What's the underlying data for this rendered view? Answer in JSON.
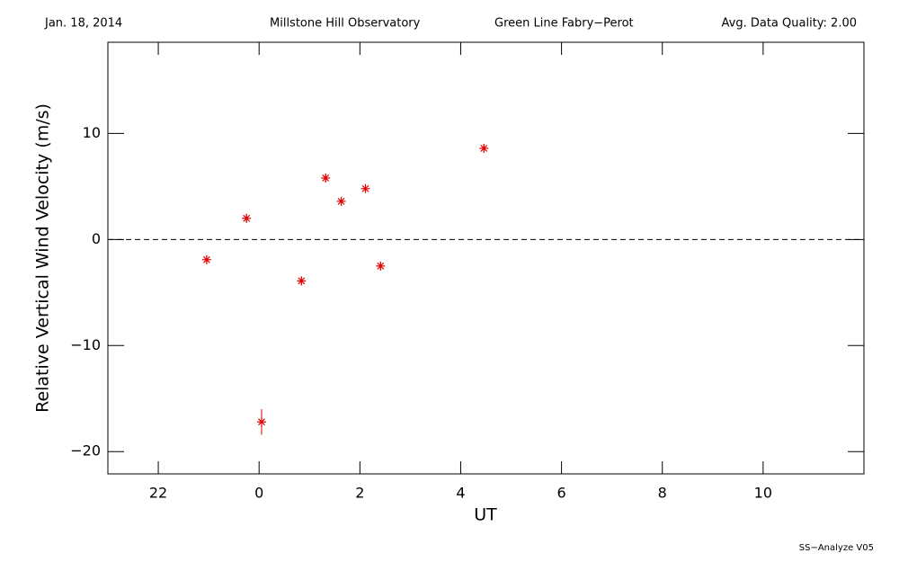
{
  "chart_data": {
    "type": "scatter",
    "header": [
      "Jan. 18, 2014",
      "Millstone Hill Observatory",
      "Green Line Fabry−Perot",
      "Avg. Data Quality: 2.00"
    ],
    "footer": "SS−Analyze V05",
    "x_label": "UT",
    "y_label": "Relative Vertical Wind Velocity (m/s)",
    "x": [
      22.96,
      23.75,
      24.05,
      24.84,
      25.32,
      25.63,
      26.11,
      26.41,
      28.46
    ],
    "values": [
      -1.9,
      2.0,
      -17.2,
      -3.9,
      5.8,
      3.6,
      4.8,
      -2.5,
      8.6
    ],
    "errors": [
      0.4,
      0.4,
      1.2,
      0.4,
      0.4,
      0.4,
      0.4,
      0.4,
      0.4
    ],
    "color": "#e00000",
    "xlim": [
      21,
      36
    ],
    "xticks": [
      22,
      {
        "value": 24,
        "label": "0"
      },
      {
        "value": 26,
        "label": "2"
      },
      {
        "value": 28,
        "label": "4"
      },
      {
        "value": 30,
        "label": "6"
      },
      {
        "value": 32,
        "label": "8"
      },
      {
        "value": 34,
        "label": "10"
      }
    ],
    "ylim": [
      -22.1,
      18.6
    ],
    "yticks": [
      {
        "value": -20,
        "label": "−20"
      },
      {
        "value": -10,
        "label": "−10"
      },
      0,
      10
    ],
    "zero_line": true
  }
}
